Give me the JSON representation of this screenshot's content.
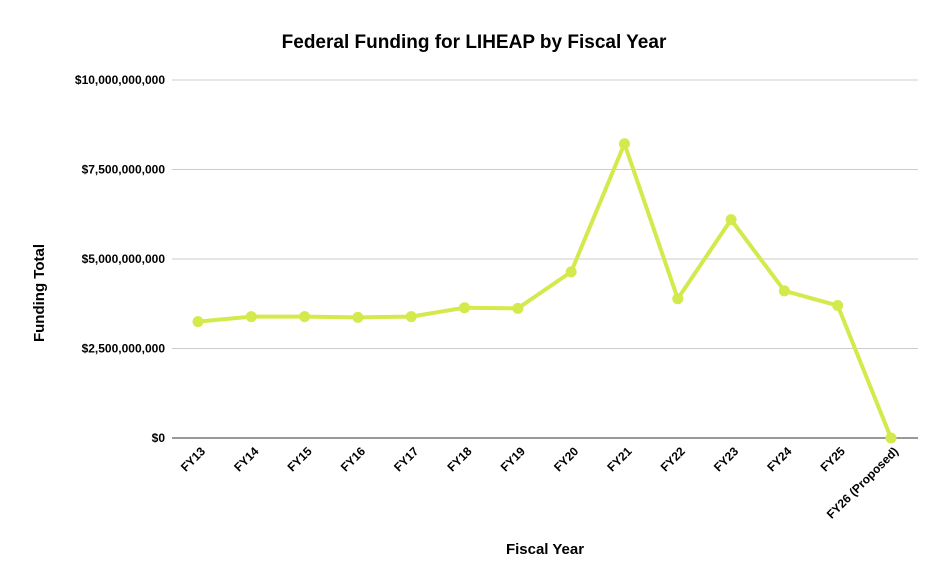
{
  "chart_data": {
    "type": "line",
    "title": "Federal Funding for LIHEAP by Fiscal Year",
    "xlabel": "Fiscal Year",
    "ylabel": "Funding Total",
    "categories": [
      "FY13",
      "FY14",
      "FY15",
      "FY16",
      "FY17",
      "FY18",
      "FY19",
      "FY20",
      "FY21",
      "FY22",
      "FY23",
      "FY24",
      "FY25",
      "FY26 (Proposed)"
    ],
    "series": [
      {
        "name": "Funding Total",
        "color": "#d4e94b",
        "values": [
          3250000000,
          3390000000,
          3390000000,
          3370000000,
          3390000000,
          3640000000,
          3620000000,
          4640000000,
          8220000000,
          3890000000,
          6100000000,
          4110000000,
          3700000000,
          0
        ]
      }
    ],
    "ylim": [
      0,
      10000000000
    ],
    "yticks": [
      0,
      2500000000,
      5000000000,
      7500000000,
      10000000000
    ],
    "ytick_labels": [
      "$0",
      "$2,500,000,000",
      "$5,000,000,000",
      "$7,500,000,000",
      "$10,000,000,000"
    ],
    "grid": true,
    "legend": "none"
  }
}
